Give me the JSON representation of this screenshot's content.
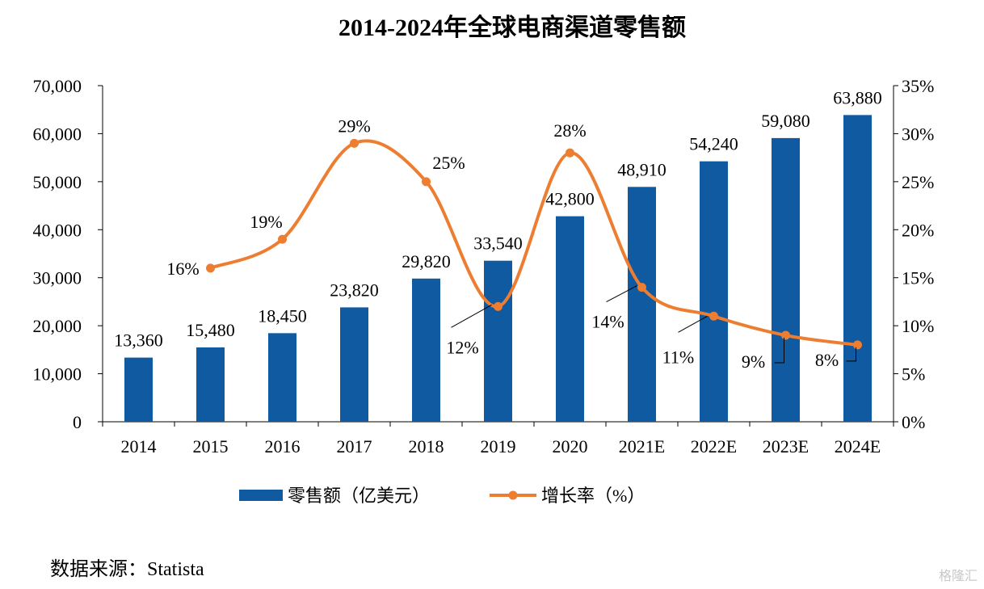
{
  "chart_data": {
    "type": "bar",
    "title": "2014-2024年全球电商渠道零售额",
    "categories": [
      "2014",
      "2015",
      "2016",
      "2017",
      "2018",
      "2019",
      "2020",
      "2021E",
      "2022E",
      "2023E",
      "2024E"
    ],
    "series": [
      {
        "name": "零售额（亿美元）",
        "type": "bar",
        "axis": "left",
        "values": [
          13360,
          15480,
          18450,
          23820,
          29820,
          33540,
          42800,
          48910,
          54240,
          59080,
          63880
        ],
        "labels": [
          "13,360",
          "15,480",
          "18,450",
          "23,820",
          "29,820",
          "33,540",
          "42,800",
          "48,910",
          "54,240",
          "59,080",
          "63,880"
        ]
      },
      {
        "name": "增长率（%）",
        "type": "line",
        "axis": "right",
        "values": [
          null,
          16,
          19,
          29,
          25,
          12,
          28,
          14,
          11,
          9,
          8
        ],
        "labels": [
          "",
          "16%",
          "19%",
          "29%",
          "25%",
          "12%",
          "28%",
          "14%",
          "11%",
          "9%",
          "8%"
        ]
      }
    ],
    "y_left": {
      "ylim": [
        0,
        70000
      ],
      "ticks": [
        "0",
        "10,000",
        "20,000",
        "30,000",
        "40,000",
        "50,000",
        "60,000",
        "70,000"
      ]
    },
    "y_right": {
      "ylim": [
        0,
        35
      ],
      "ticks": [
        "0%",
        "5%",
        "10%",
        "15%",
        "20%",
        "25%",
        "30%",
        "35%"
      ]
    },
    "legend": "bottom",
    "grid": false
  },
  "colors": {
    "bar": "#0f5aa0",
    "line": "#ed7d31",
    "axis": "#000000"
  },
  "source": "数据来源：Statista",
  "watermark": "格隆汇"
}
